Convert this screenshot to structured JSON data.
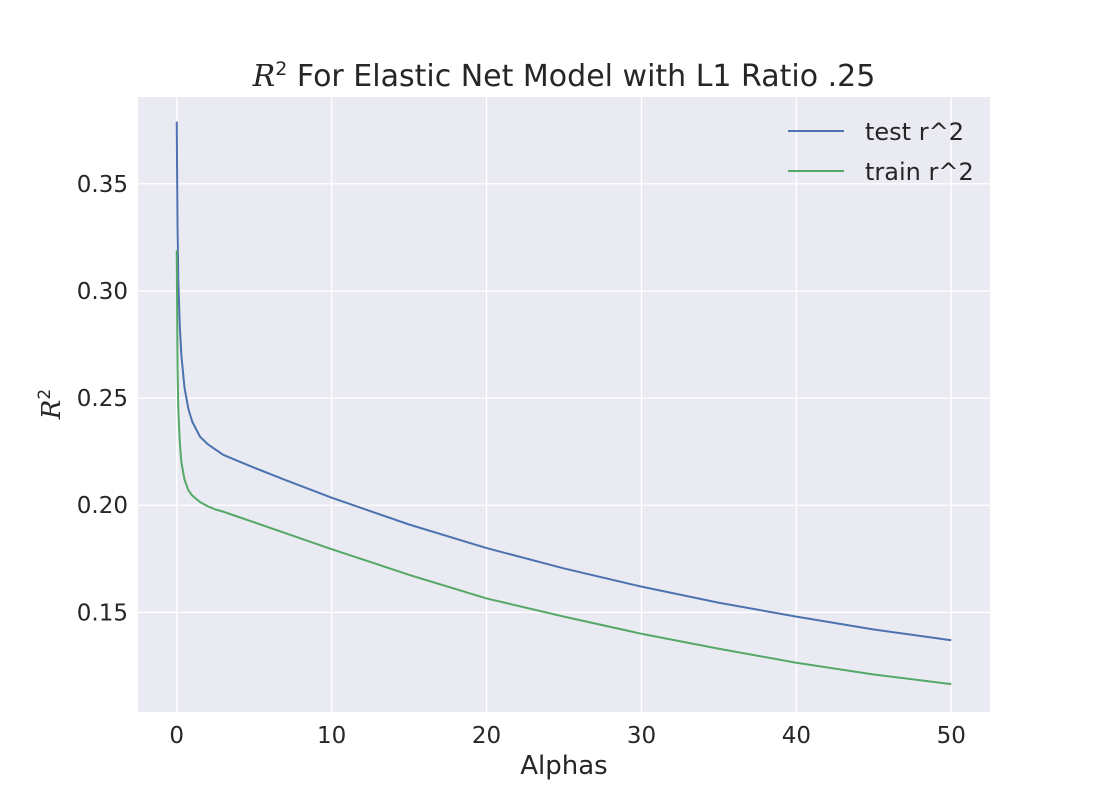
{
  "chart_data": {
    "type": "line",
    "title_prefix": "R",
    "title_sup": "2",
    "title_rest": " For Elastic Net Model with L1 Ratio .25",
    "xlabel": "Alphas",
    "ylabel_main": "R",
    "ylabel_sup": "2",
    "xlim": [
      -2.5,
      52.5
    ],
    "ylim": [
      0.1035,
      0.3905
    ],
    "xticks": [
      0,
      10,
      20,
      30,
      40,
      50
    ],
    "xtick_labels": [
      "0",
      "10",
      "20",
      "30",
      "40",
      "50"
    ],
    "yticks": [
      0.15,
      0.2,
      0.25,
      0.3,
      0.35
    ],
    "ytick_labels": [
      "0.15",
      "0.20",
      "0.25",
      "0.30",
      "0.35"
    ],
    "grid": true,
    "legend_position": "upper-right",
    "background_color": "#eaeaf2",
    "series": [
      {
        "name": "test r^2",
        "color": "#4c72b0",
        "x": [
          0.001,
          0.05,
          0.1,
          0.2,
          0.3,
          0.5,
          0.75,
          1,
          1.5,
          2,
          2.5,
          3,
          4,
          5,
          7,
          10,
          15,
          20,
          25,
          30,
          35,
          40,
          45,
          50
        ],
        "y": [
          0.379,
          0.33,
          0.305,
          0.283,
          0.27,
          0.255,
          0.245,
          0.239,
          0.232,
          0.2285,
          0.226,
          0.2235,
          0.2205,
          0.2175,
          0.2118,
          0.2035,
          0.191,
          0.18,
          0.1705,
          0.162,
          0.1545,
          0.148,
          0.142,
          0.137
        ]
      },
      {
        "name": "train r^2",
        "color": "#55a868",
        "x": [
          0.001,
          0.05,
          0.1,
          0.2,
          0.3,
          0.5,
          0.75,
          1,
          1.5,
          2,
          2.5,
          3,
          4,
          5,
          7,
          10,
          15,
          20,
          25,
          30,
          35,
          40,
          45,
          50
        ],
        "y": [
          0.319,
          0.265,
          0.245,
          0.229,
          0.22,
          0.212,
          0.207,
          0.2045,
          0.2015,
          0.1995,
          0.198,
          0.197,
          0.1945,
          0.192,
          0.187,
          0.1795,
          0.1675,
          0.1565,
          0.148,
          0.14,
          0.133,
          0.1265,
          0.121,
          0.1165
        ]
      }
    ]
  }
}
